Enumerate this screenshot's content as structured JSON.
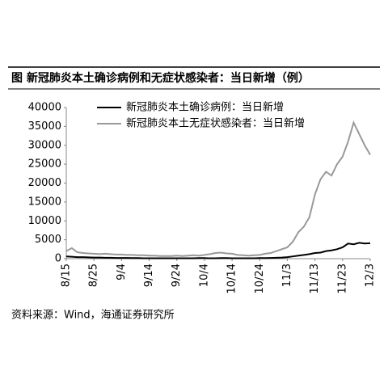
{
  "chart_data": {
    "type": "line",
    "title": "图  新冠肺炎本土确诊病例和无症状感染者：当日新增（例）",
    "source": "资料来源：Wind，海通证券研究所",
    "categories": [
      "8/15",
      null,
      null,
      null,
      null,
      "8/25",
      null,
      null,
      null,
      null,
      "9/4",
      null,
      null,
      null,
      null,
      "9/14",
      null,
      null,
      null,
      null,
      "9/24",
      null,
      null,
      null,
      null,
      "10/4",
      null,
      null,
      null,
      null,
      "10/14",
      null,
      null,
      null,
      null,
      "10/24",
      null,
      null,
      null,
      null,
      "11/3",
      null,
      null,
      null,
      null,
      "11/13",
      null,
      null,
      null,
      null,
      "11/23",
      null,
      null,
      null,
      null,
      "12/3"
    ],
    "series": [
      {
        "name": "新冠肺炎本土确诊病例：当日新增",
        "color": "#000000",
        "width": 2,
        "values": [
          600,
          500,
          400,
          400,
          350,
          300,
          300,
          250,
          250,
          200,
          200,
          200,
          150,
          150,
          100,
          100,
          100,
          100,
          100,
          100,
          100,
          100,
          100,
          100,
          150,
          150,
          100,
          100,
          150,
          150,
          100,
          100,
          100,
          100,
          100,
          150,
          150,
          200,
          250,
          300,
          400,
          600,
          800,
          1000,
          1200,
          1500,
          1600,
          2000,
          2200,
          2500,
          3000,
          4000,
          3800,
          4200,
          4000,
          4100
        ]
      },
      {
        "name": "新冠肺炎本土无症状感染者：当日新增",
        "color": "#999999",
        "width": 2,
        "values": [
          2000,
          2800,
          1700,
          1500,
          1400,
          1300,
          1200,
          1300,
          1200,
          1100,
          1100,
          1000,
          1000,
          900,
          900,
          800,
          800,
          700,
          700,
          700,
          800,
          700,
          800,
          900,
          800,
          1000,
          1200,
          1500,
          1600,
          1400,
          1300,
          1000,
          900,
          800,
          900,
          1000,
          1300,
          1500,
          2000,
          2500,
          3000,
          4500,
          7000,
          8500,
          11000,
          17000,
          21000,
          23000,
          22000,
          25000,
          27000,
          31000,
          36000,
          33000,
          30000,
          27500
        ]
      }
    ],
    "ylim": [
      0,
      40000
    ],
    "yticks": [
      0,
      5000,
      10000,
      15000,
      20000,
      25000,
      30000,
      35000,
      40000
    ],
    "grid": false,
    "legend": "upper left"
  }
}
